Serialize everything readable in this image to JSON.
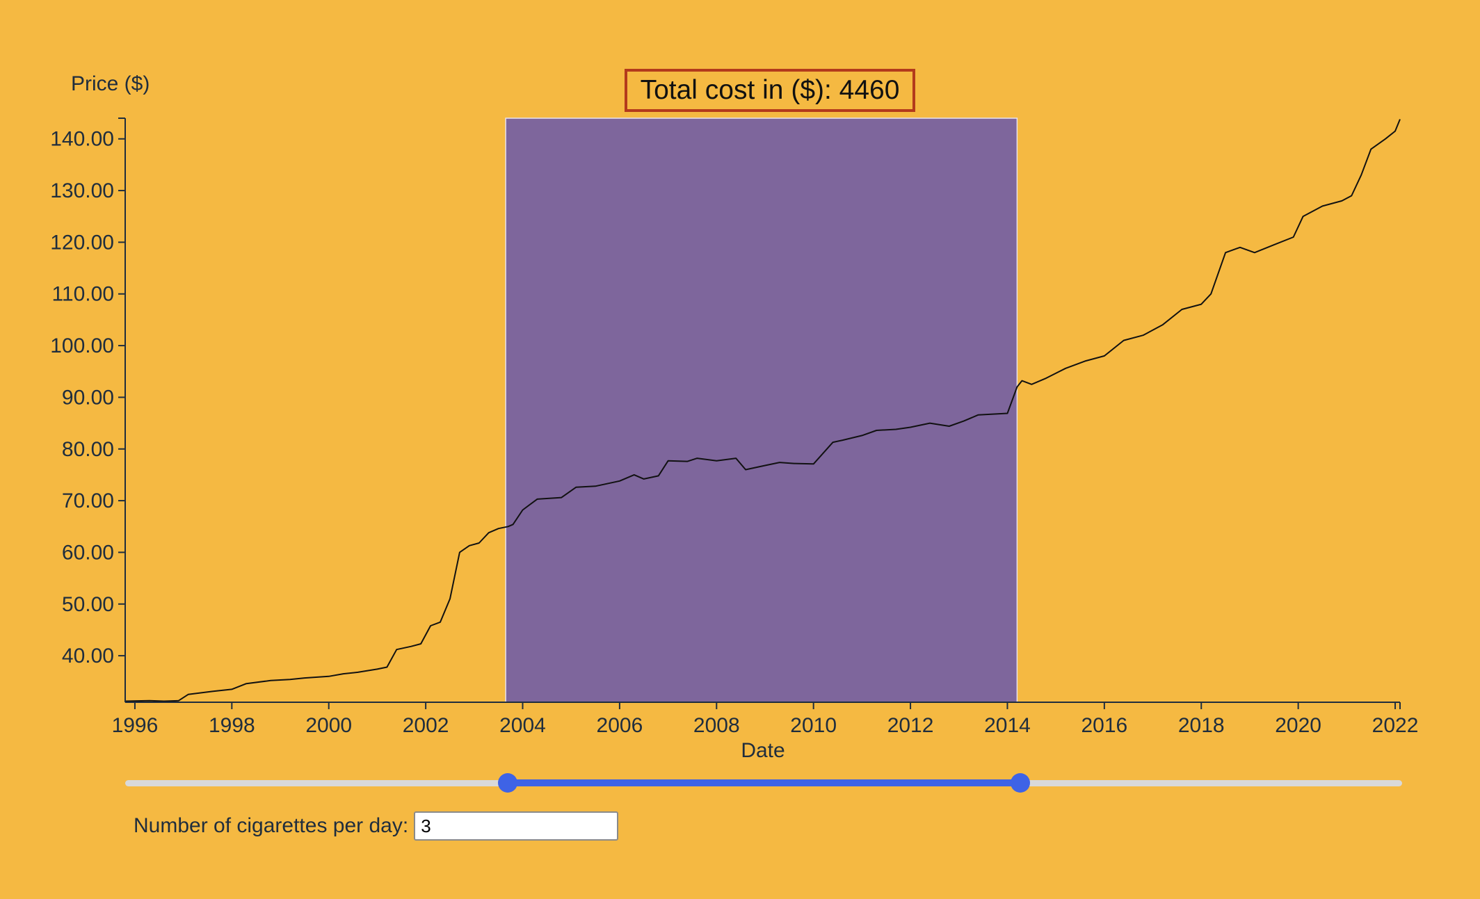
{
  "total_cost": {
    "label": "Total cost in ($): 4460"
  },
  "selection": {
    "start": 2003.65,
    "end": 2014.2
  },
  "controls": {
    "cigarettes_label": "Number of cigarettes per day:",
    "cigarettes_value": "3"
  },
  "colors": {
    "background": "#f5b942",
    "selection_fill": "#6d5aa8",
    "line": "#111111",
    "line_in_selection": "#1a1a7a",
    "slider_active": "#3e63e6",
    "slider_track": "#d9d9d9",
    "total_box_border": "#b33a1c"
  },
  "chart_data": {
    "type": "line",
    "xlabel": "Date",
    "ylabel": "Price ($)",
    "xlim": [
      1995.8,
      2022.1
    ],
    "ylim": [
      31,
      144
    ],
    "x_ticks": [
      1996,
      1998,
      2000,
      2002,
      2004,
      2006,
      2008,
      2010,
      2012,
      2014,
      2016,
      2018,
      2020,
      2022
    ],
    "x_tick_labels": [
      "1996",
      "1998",
      "2000",
      "2002",
      "2004",
      "2006",
      "2008",
      "2010",
      "2012",
      "2014",
      "2016",
      "2018",
      "2020",
      "2022"
    ],
    "y_ticks": [
      40,
      50,
      60,
      70,
      80,
      90,
      100,
      110,
      120,
      130,
      140
    ],
    "y_tick_labels": [
      "40.00",
      "50.00",
      "60.00",
      "70.00",
      "80.00",
      "90.00",
      "100.00",
      "110.00",
      "120.00",
      "130.00",
      "140.00"
    ],
    "grid": false,
    "series": [
      {
        "x": [
          1995.8,
          1996.3,
          1996.6,
          1996.9,
          1997.1,
          1997.6,
          1998.0,
          1998.3,
          1998.8,
          1999.2,
          1999.5,
          2000.0,
          2000.3,
          2000.6,
          2001.0,
          2001.2,
          2001.4,
          2001.7,
          2001.9,
          2002.1,
          2002.3,
          2002.5,
          2002.7,
          2002.9,
          2003.1,
          2003.3,
          2003.5,
          2003.7,
          2003.8,
          2004.0,
          2004.3,
          2004.8,
          2005.1,
          2005.5,
          2006.0,
          2006.3,
          2006.5,
          2006.8,
          2007.0,
          2007.4,
          2007.6,
          2008.0,
          2008.4,
          2008.6,
          2009.0,
          2009.3,
          2009.6,
          2010.0,
          2010.4,
          2010.6,
          2011.0,
          2011.3,
          2011.7,
          2012.0,
          2012.4,
          2012.8,
          2013.1,
          2013.4,
          2013.8,
          2014.0,
          2014.2,
          2014.3,
          2014.5,
          2014.8,
          2015.2,
          2015.6,
          2016.0,
          2016.4,
          2016.8,
          2017.2,
          2017.6,
          2018.0,
          2018.2,
          2018.5,
          2018.8,
          2019.1,
          2019.5,
          2019.9,
          2020.1,
          2020.5,
          2020.9,
          2021.1,
          2021.3,
          2021.5,
          2021.8,
          2022.0,
          2022.1
        ],
        "y": [
          31.2,
          31.3,
          31.2,
          31.3,
          32.5,
          33.1,
          33.5,
          34.6,
          35.2,
          35.4,
          35.7,
          36.0,
          36.5,
          36.8,
          37.4,
          37.8,
          41.2,
          41.8,
          42.3,
          45.8,
          46.5,
          51.0,
          60.0,
          61.3,
          61.8,
          63.8,
          64.6,
          65.0,
          65.4,
          68.2,
          70.3,
          70.6,
          72.6,
          72.8,
          73.8,
          75.0,
          74.2,
          74.8,
          77.7,
          77.6,
          78.2,
          77.7,
          78.2,
          76.0,
          76.8,
          77.4,
          77.2,
          77.1,
          81.3,
          81.7,
          82.6,
          83.6,
          83.8,
          84.2,
          85.0,
          84.4,
          85.4,
          86.6,
          86.8,
          86.9,
          92.0,
          93.2,
          92.5,
          93.7,
          95.6,
          97.0,
          98.0,
          101.0,
          102.0,
          104.0,
          107.0,
          108.0,
          110.0,
          118.0,
          119.0,
          118.0,
          119.5,
          121.0,
          125.0,
          127.0,
          128.0,
          129.0,
          133.0,
          138.0,
          140.0,
          141.5,
          143.8
        ]
      }
    ]
  }
}
